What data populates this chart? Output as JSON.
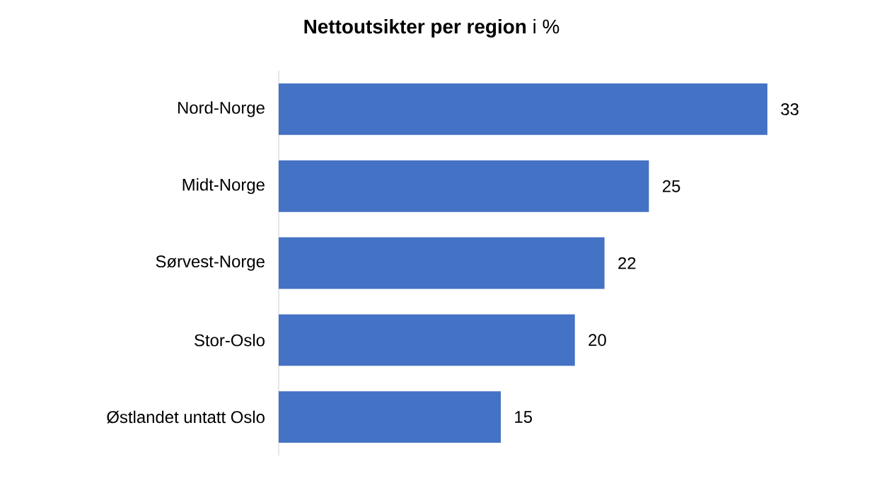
{
  "chart_data": {
    "type": "bar",
    "orientation": "horizontal",
    "title": "**Nettoutsikter per region** i %",
    "categories": [
      "Nord-Norge",
      "Midt-Norge",
      "Sørvest-Norge",
      "Stor-Oslo",
      "Østlandet untatt Oslo"
    ],
    "values": [
      33,
      25,
      22,
      20,
      15
    ],
    "color": "#4472c4",
    "data_labels": true,
    "grid": false
  }
}
